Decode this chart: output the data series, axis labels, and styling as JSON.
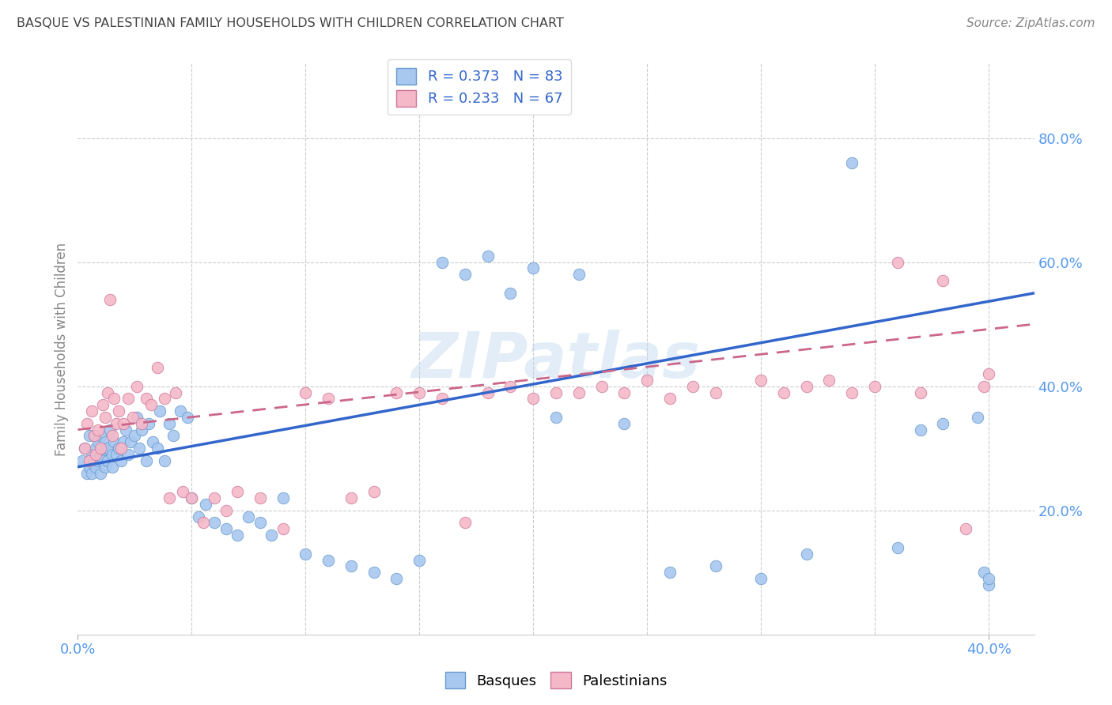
{
  "title": "BASQUE VS PALESTINIAN FAMILY HOUSEHOLDS WITH CHILDREN CORRELATION CHART",
  "source": "Source: ZipAtlas.com",
  "ylabel": "Family Households with Children",
  "ytick_labels": [
    "20.0%",
    "40.0%",
    "60.0%",
    "80.0%"
  ],
  "ytick_vals": [
    0.2,
    0.4,
    0.6,
    0.8
  ],
  "xlim": [
    0.0,
    0.42
  ],
  "ylim": [
    0.0,
    0.92
  ],
  "basque_color": "#A8C8F0",
  "basque_edge": "#6699CC",
  "palestinian_color": "#F5B8C8",
  "palestinian_edge": "#CC7799",
  "line_blue": "#3366CC",
  "line_pink": "#CC6688",
  "background_color": "#FFFFFF",
  "grid_color": "#CCCCCC",
  "title_color": "#444444",
  "axis_tick_color": "#5599EE",
  "watermark": "ZIPatlas",
  "blue_line_x": [
    0.0,
    0.42
  ],
  "blue_line_y": [
    0.27,
    0.55
  ],
  "pink_line_x": [
    0.0,
    0.42
  ],
  "pink_line_y": [
    0.33,
    0.5
  ],
  "basque_x": [
    0.002,
    0.003,
    0.004,
    0.005,
    0.005,
    0.006,
    0.006,
    0.007,
    0.007,
    0.008,
    0.008,
    0.009,
    0.009,
    0.01,
    0.01,
    0.01,
    0.011,
    0.011,
    0.012,
    0.012,
    0.013,
    0.013,
    0.014,
    0.015,
    0.015,
    0.016,
    0.017,
    0.018,
    0.019,
    0.02,
    0.021,
    0.022,
    0.023,
    0.025,
    0.026,
    0.027,
    0.028,
    0.03,
    0.031,
    0.033,
    0.035,
    0.036,
    0.038,
    0.04,
    0.042,
    0.045,
    0.048,
    0.05,
    0.053,
    0.056,
    0.06,
    0.065,
    0.07,
    0.075,
    0.08,
    0.085,
    0.09,
    0.1,
    0.11,
    0.12,
    0.13,
    0.14,
    0.15,
    0.16,
    0.17,
    0.18,
    0.19,
    0.2,
    0.21,
    0.22,
    0.24,
    0.26,
    0.28,
    0.3,
    0.32,
    0.34,
    0.36,
    0.37,
    0.38,
    0.395,
    0.398,
    0.4,
    0.4
  ],
  "basque_y": [
    0.28,
    0.3,
    0.26,
    0.32,
    0.27,
    0.29,
    0.26,
    0.32,
    0.28,
    0.3,
    0.27,
    0.31,
    0.28,
    0.29,
    0.32,
    0.26,
    0.3,
    0.28,
    0.31,
    0.27,
    0.3,
    0.28,
    0.33,
    0.29,
    0.27,
    0.31,
    0.29,
    0.3,
    0.28,
    0.31,
    0.33,
    0.29,
    0.31,
    0.32,
    0.35,
    0.3,
    0.33,
    0.28,
    0.34,
    0.31,
    0.3,
    0.36,
    0.28,
    0.34,
    0.32,
    0.36,
    0.35,
    0.22,
    0.19,
    0.21,
    0.18,
    0.17,
    0.16,
    0.19,
    0.18,
    0.16,
    0.22,
    0.13,
    0.12,
    0.11,
    0.1,
    0.09,
    0.12,
    0.6,
    0.58,
    0.61,
    0.55,
    0.59,
    0.35,
    0.58,
    0.34,
    0.1,
    0.11,
    0.09,
    0.13,
    0.76,
    0.14,
    0.33,
    0.34,
    0.35,
    0.1,
    0.08,
    0.09
  ],
  "pal_x": [
    0.003,
    0.004,
    0.005,
    0.006,
    0.007,
    0.008,
    0.009,
    0.01,
    0.011,
    0.012,
    0.013,
    0.014,
    0.015,
    0.016,
    0.017,
    0.018,
    0.019,
    0.02,
    0.022,
    0.024,
    0.026,
    0.028,
    0.03,
    0.032,
    0.035,
    0.038,
    0.04,
    0.043,
    0.046,
    0.05,
    0.055,
    0.06,
    0.065,
    0.07,
    0.08,
    0.09,
    0.1,
    0.11,
    0.12,
    0.13,
    0.14,
    0.15,
    0.16,
    0.17,
    0.18,
    0.19,
    0.2,
    0.21,
    0.22,
    0.23,
    0.24,
    0.25,
    0.26,
    0.27,
    0.28,
    0.3,
    0.31,
    0.32,
    0.33,
    0.34,
    0.35,
    0.36,
    0.37,
    0.38,
    0.39,
    0.398,
    0.4
  ],
  "pal_y": [
    0.3,
    0.34,
    0.28,
    0.36,
    0.32,
    0.29,
    0.33,
    0.3,
    0.37,
    0.35,
    0.39,
    0.54,
    0.32,
    0.38,
    0.34,
    0.36,
    0.3,
    0.34,
    0.38,
    0.35,
    0.4,
    0.34,
    0.38,
    0.37,
    0.43,
    0.38,
    0.22,
    0.39,
    0.23,
    0.22,
    0.18,
    0.22,
    0.2,
    0.23,
    0.22,
    0.17,
    0.39,
    0.38,
    0.22,
    0.23,
    0.39,
    0.39,
    0.38,
    0.18,
    0.39,
    0.4,
    0.38,
    0.39,
    0.39,
    0.4,
    0.39,
    0.41,
    0.38,
    0.4,
    0.39,
    0.41,
    0.39,
    0.4,
    0.41,
    0.39,
    0.4,
    0.6,
    0.39,
    0.57,
    0.17,
    0.4,
    0.42
  ]
}
